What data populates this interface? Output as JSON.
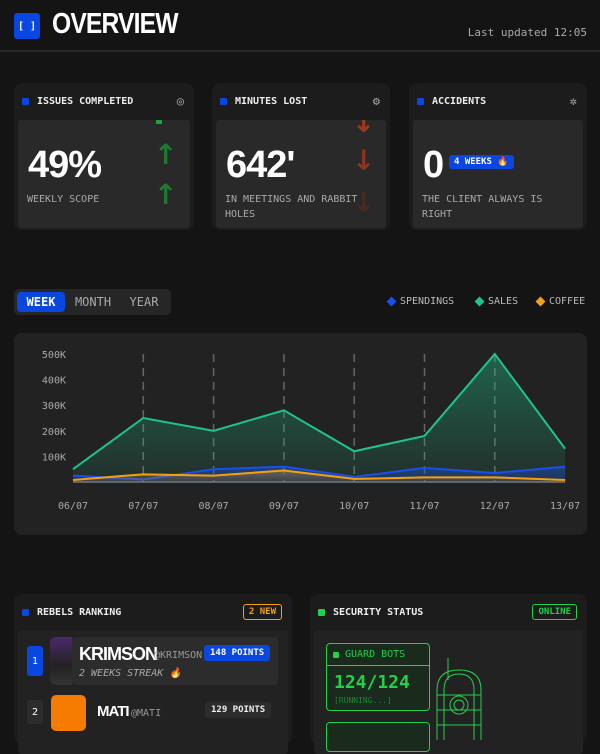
{
  "header": {
    "logo_text": "[ ]",
    "title": "OVERVIEW",
    "last_updated": "Last updated 12:05"
  },
  "stats": [
    {
      "label": "ISSUES COMPLETED",
      "value": "49%",
      "caption": "WEEKLY SCOPE",
      "icon": "settings-icon",
      "trend": "up"
    },
    {
      "label": "MINUTES LOST",
      "value": "642'",
      "caption": "IN MEETINGS AND RABBIT HOLES",
      "icon": "gear-icon",
      "trend": "down"
    },
    {
      "label": "ACCIDENTS",
      "value": "0",
      "caption": "THE CLIENT ALWAYS IS RIGHT",
      "icon": "bug-icon",
      "badge": "4 WEEKS 🔥"
    }
  ],
  "tabs": [
    "WEEK",
    "MONTH",
    "YEAR"
  ],
  "active_tab": "WEEK",
  "legend": [
    {
      "name": "SPENDINGS",
      "color": "#1a4fe8"
    },
    {
      "name": "SALES",
      "color": "#1ec48a"
    },
    {
      "name": "COFFEE",
      "color": "#f5a011"
    }
  ],
  "chart_data": {
    "type": "area",
    "categories": [
      "06/07",
      "07/07",
      "08/07",
      "09/07",
      "10/07",
      "11/07",
      "12/07",
      "13/07"
    ],
    "yticks": [
      "100K",
      "200K",
      "300K",
      "400K",
      "500K"
    ],
    "ylim": [
      0,
      500000
    ],
    "series": [
      {
        "name": "SALES",
        "color": "#1ec48a",
        "values": [
          50000,
          250000,
          200000,
          280000,
          120000,
          180000,
          500000,
          130000
        ]
      },
      {
        "name": "SPENDINGS",
        "color": "#1a4fe8",
        "values": [
          25000,
          10000,
          50000,
          60000,
          20000,
          55000,
          35000,
          60000
        ]
      },
      {
        "name": "COFFEE",
        "color": "#f5a011",
        "values": [
          8000,
          30000,
          25000,
          45000,
          12000,
          18000,
          18000,
          8000
        ]
      }
    ],
    "grid": "vertical dashed"
  },
  "ranking": {
    "title": "REBELS RANKING",
    "badge": "2 NEW",
    "items": [
      {
        "rank": "1",
        "name": "KRIMSON",
        "handle": "@KRIMSON",
        "points": "148 POINTS",
        "streak": "2 WEEKS STREAK 🔥"
      },
      {
        "rank": "2",
        "name": "MATI",
        "handle": "@MATI",
        "points": "129 POINTS"
      }
    ]
  },
  "security": {
    "title": "SECURITY STATUS",
    "badge": "ONLINE",
    "guard_label": "GUARD BOTS",
    "guard_value": "124/124",
    "guard_status": "[RUNNING...]"
  }
}
